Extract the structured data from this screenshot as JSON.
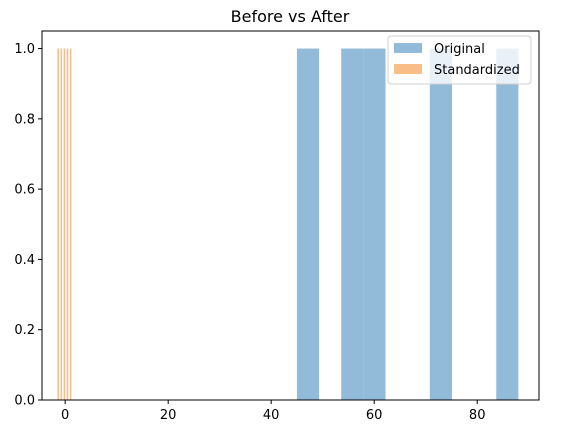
{
  "chart_data": {
    "type": "bar",
    "title": "Before vs After",
    "xlabel": "",
    "ylabel": "",
    "xlim": [
      -4.5,
      92
    ],
    "ylim": [
      0,
      1.05
    ],
    "xticks": [
      0,
      20,
      40,
      60,
      80
    ],
    "yticks": [
      0.0,
      0.2,
      0.4,
      0.6,
      0.8,
      1.0
    ],
    "ytick_labels": [
      "0.0",
      "0.2",
      "0.4",
      "0.6",
      "0.8",
      "1.0"
    ],
    "legend_position": "top-right",
    "series": [
      {
        "name": "Original",
        "color": "#92bad9",
        "bins": [
          {
            "x0": 45,
            "x1": 49.3,
            "count": 1
          },
          {
            "x0": 53.6,
            "x1": 57.9,
            "count": 1
          },
          {
            "x0": 57.9,
            "x1": 62.2,
            "count": 1
          },
          {
            "x0": 70.8,
            "x1": 75.1,
            "count": 1
          },
          {
            "x0": 83.7,
            "x1": 88.0,
            "count": 1
          }
        ]
      },
      {
        "name": "Standardized",
        "color": "#f9bd88",
        "bins": [
          {
            "x0": -1.5,
            "x1": -1.2,
            "count": 1
          },
          {
            "x0": -0.9,
            "x1": -0.6,
            "count": 1
          },
          {
            "x0": -0.3,
            "x1": 0.0,
            "count": 1
          },
          {
            "x0": 0.3,
            "x1": 0.6,
            "count": 1
          },
          {
            "x0": 0.9,
            "x1": 1.2,
            "count": 1
          }
        ]
      }
    ]
  }
}
